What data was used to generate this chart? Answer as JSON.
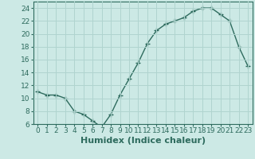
{
  "x": [
    0,
    1,
    2,
    3,
    4,
    5,
    6,
    7,
    8,
    9,
    10,
    11,
    12,
    13,
    14,
    15,
    16,
    17,
    18,
    19,
    20,
    21,
    22,
    23
  ],
  "y": [
    11,
    10.5,
    10.5,
    10,
    8,
    7.5,
    6.5,
    5.5,
    7.5,
    10.5,
    13,
    15.5,
    18.5,
    20.5,
    21.5,
    22,
    22.5,
    23.5,
    24,
    24,
    23,
    22,
    18,
    15
  ],
  "xlabel": "Humidex (Indice chaleur)",
  "ylim": [
    6,
    25
  ],
  "xlim": [
    -0.5,
    23.5
  ],
  "yticks": [
    6,
    8,
    10,
    12,
    14,
    16,
    18,
    20,
    22,
    24
  ],
  "xticks": [
    0,
    1,
    2,
    3,
    4,
    5,
    6,
    7,
    8,
    9,
    10,
    11,
    12,
    13,
    14,
    15,
    16,
    17,
    18,
    19,
    20,
    21,
    22,
    23
  ],
  "line_color": "#2e6b5e",
  "marker": "+",
  "marker_size": 4,
  "bg_color": "#cce9e5",
  "grid_color": "#b0d4cf",
  "xlabel_fontsize": 8,
  "tick_fontsize": 6.5
}
